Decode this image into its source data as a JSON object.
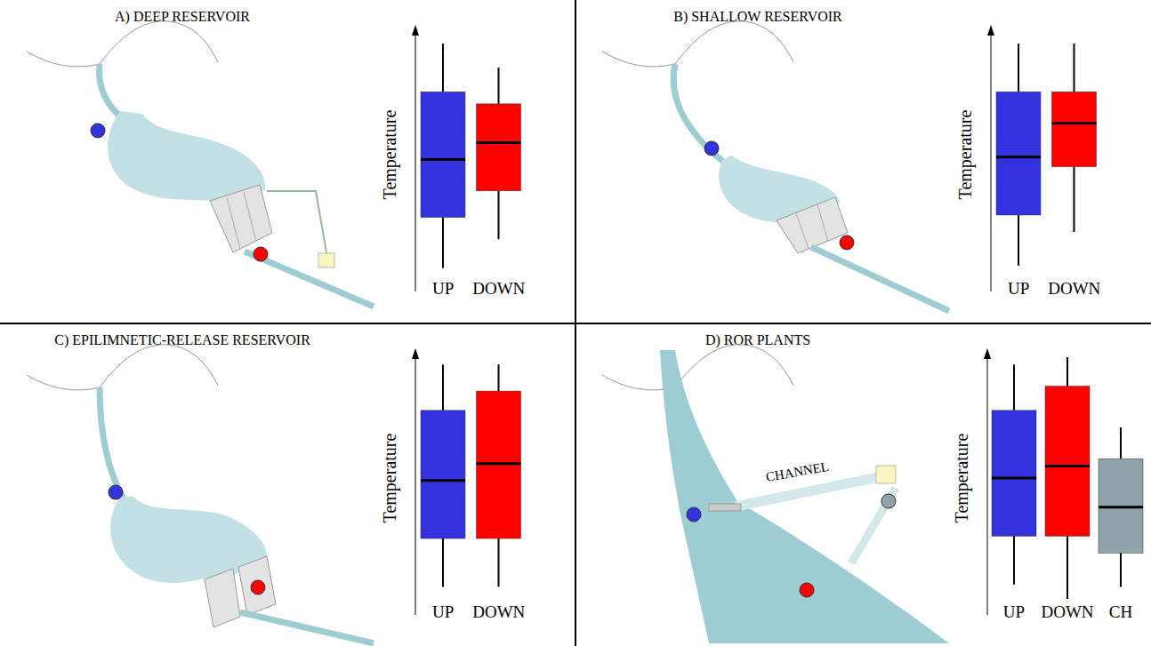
{
  "chart_data": [
    {
      "type": "box",
      "title": "A) DEEP RESERVOIR",
      "y_label": "Temperature",
      "categories": [
        "UP",
        "DOWN"
      ],
      "colors": [
        "#3333dd",
        "#ff0000"
      ],
      "boxes": [
        {
          "min": 3,
          "q1": 24,
          "median": 48,
          "q3": 76,
          "max": 96
        },
        {
          "min": 15,
          "q1": 35,
          "median": 55,
          "q3": 71,
          "max": 86
        }
      ],
      "ylim": [
        0,
        100
      ],
      "tick_labels": "x"
    },
    {
      "type": "box",
      "title": "B) SHALLOW RESERVOIR",
      "y_label": "Temperature",
      "categories": [
        "UP",
        "DOWN"
      ],
      "colors": [
        "#3333dd",
        "#ff0000"
      ],
      "boxes": [
        {
          "min": 4,
          "q1": 25,
          "median": 49,
          "q3": 76,
          "max": 96
        },
        {
          "min": 18,
          "q1": 45,
          "median": 63,
          "q3": 76,
          "max": 96
        }
      ],
      "ylim": [
        0,
        100
      ],
      "tick_labels": "x"
    },
    {
      "type": "box",
      "title": "C) EPILIMNETIC-RELEASE RESERVOIR",
      "y_label": "Temperature",
      "categories": [
        "UP",
        "DOWN"
      ],
      "colors": [
        "#3333dd",
        "#ff0000"
      ],
      "boxes": [
        {
          "min": 5,
          "q1": 25,
          "median": 49,
          "q3": 78,
          "max": 97
        },
        {
          "min": 5,
          "q1": 25,
          "median": 56,
          "q3": 86,
          "max": 97
        }
      ],
      "ylim": [
        0,
        100
      ],
      "tick_labels": "x"
    },
    {
      "type": "box",
      "title": "D) ROR PLANTS",
      "y_label": "Temperature",
      "annotations": [
        "CHANNEL"
      ],
      "categories": [
        "UP",
        "DOWN",
        "CH"
      ],
      "colors": [
        "#3333dd",
        "#ff0000",
        "#8fa3ab"
      ],
      "boxes": [
        {
          "min": 6,
          "q1": 26,
          "median": 50,
          "q3": 78,
          "max": 97
        },
        {
          "min": 0,
          "q1": 26,
          "median": 55,
          "q3": 88,
          "max": 100
        },
        {
          "min": 5,
          "q1": 19,
          "median": 38,
          "q3": 58,
          "max": 71
        }
      ],
      "ylim": [
        0,
        100
      ],
      "tick_labels": "x"
    }
  ]
}
